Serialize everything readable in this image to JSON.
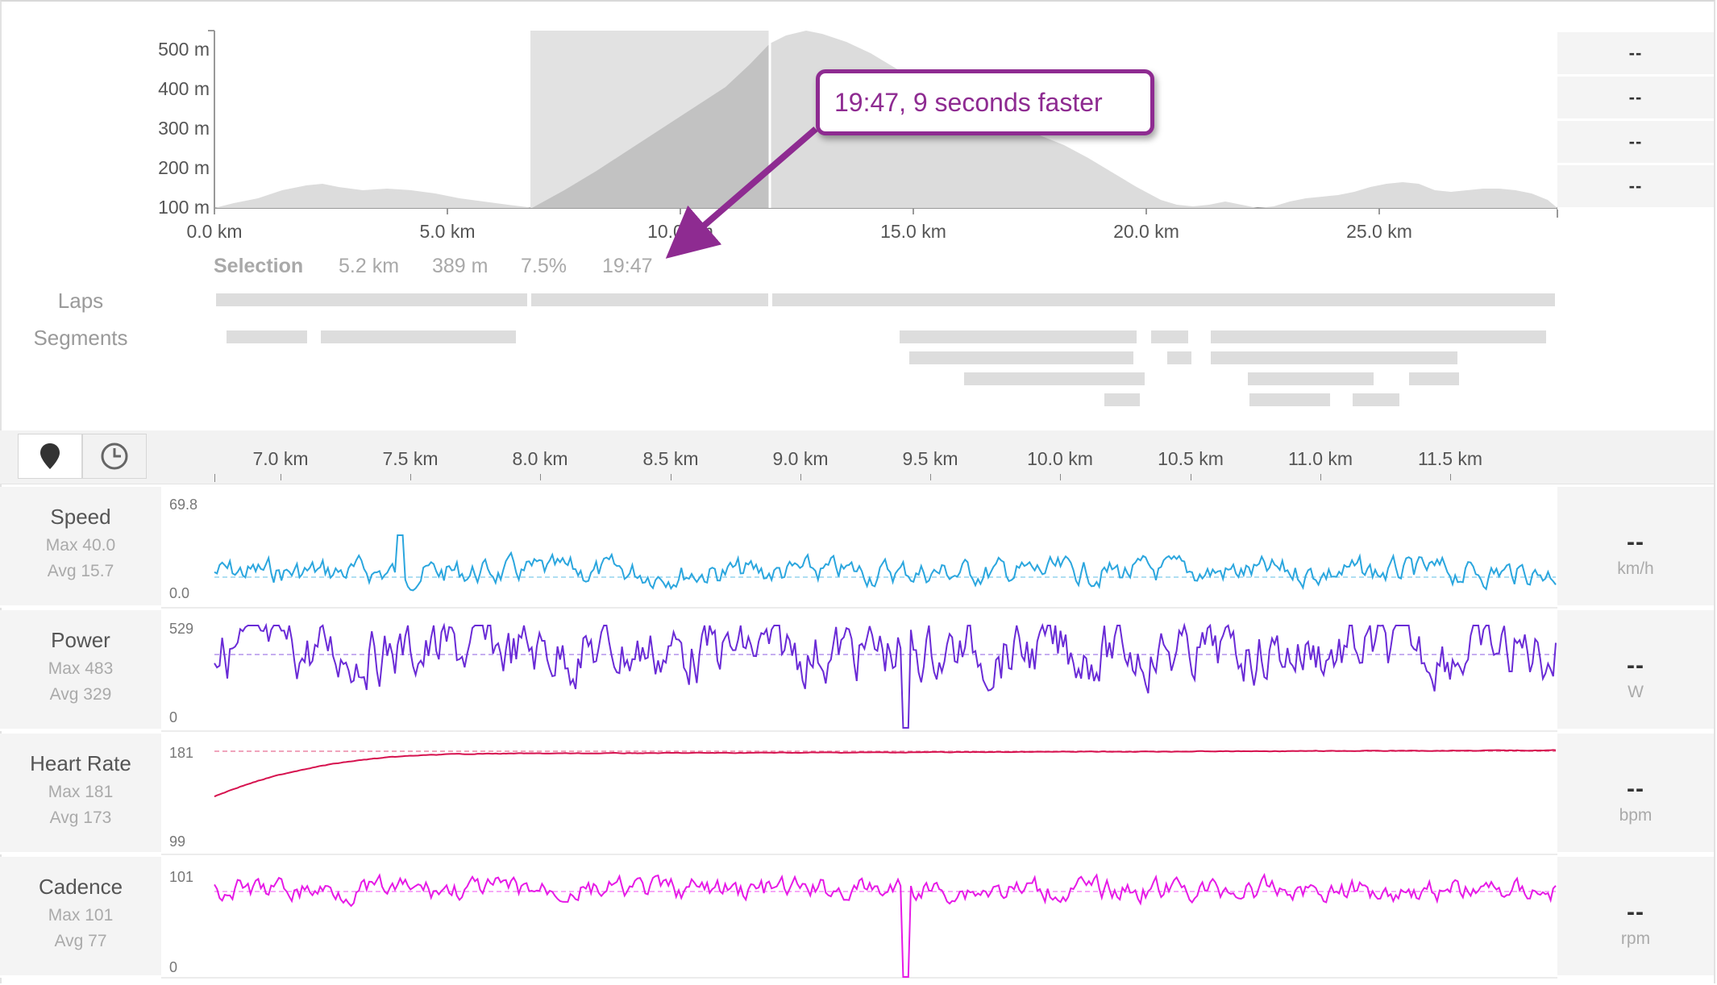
{
  "elevation": {
    "y_labels": [
      "500 m",
      "400 m",
      "300 m",
      "200 m",
      "100 m"
    ],
    "x_labels": [
      "0.0 km",
      "5.0 km",
      "10.0 km",
      "15.0 km",
      "20.0 km",
      "25.0 km"
    ],
    "right_values": [
      "--",
      "--",
      "--",
      "--"
    ]
  },
  "selection": {
    "label": "Selection",
    "distance": "5.2 km",
    "elevation_gain": "389 m",
    "grade": "7.5%",
    "time": "19:47"
  },
  "rows": {
    "laps_label": "Laps",
    "segments_label": "Segments"
  },
  "callout": {
    "text": "19:47, 9 seconds faster"
  },
  "toolbar": {
    "map_icon": "map-pin-icon",
    "time_icon": "clock-icon"
  },
  "zoom_axis": {
    "labels": [
      "7.0 km",
      "7.5 km",
      "8.0 km",
      "8.5 km",
      "9.0 km",
      "9.5 km",
      "10.0 km",
      "10.5 km",
      "11.0 km",
      "11.5 km"
    ]
  },
  "metrics": [
    {
      "name": "Speed",
      "max": "Max 40.0",
      "avg": "Avg 15.7",
      "top": "69.8",
      "bottom": "0.0",
      "value": "--",
      "unit": "km/h",
      "color": "#2ba6de"
    },
    {
      "name": "Power",
      "max": "Max 483",
      "avg": "Avg 329",
      "top": "529",
      "bottom": "0",
      "value": "--",
      "unit": "W",
      "color": "#6a2bd6"
    },
    {
      "name": "Heart Rate",
      "max": "Max 181",
      "avg": "Avg 173",
      "top": "181",
      "bottom": "99",
      "value": "--",
      "unit": "bpm",
      "color": "#d6124f"
    },
    {
      "name": "Cadence",
      "max": "Max 101",
      "avg": "Avg 77",
      "top": "101",
      "bottom": "0",
      "value": "--",
      "unit": "rpm",
      "color": "#e61ae6"
    }
  ]
}
